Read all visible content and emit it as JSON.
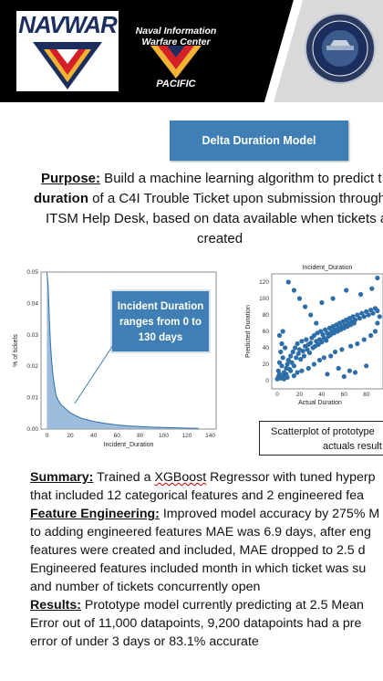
{
  "header": {
    "logo_text": "NAVWAR",
    "org_title": "Naval Information Warfare Center",
    "org_sub": "PACIFIC",
    "colors": {
      "band": "#000000",
      "navy": "#1c2e5e",
      "gold": "#f2b233",
      "red": "#d42127"
    }
  },
  "title_button": "Delta Duration Model",
  "purpose": {
    "label": "Purpose:",
    "line1_rest": " Build a machine learning algorithm to predict t",
    "line2_bold": "duration",
    "line2_rest": " of a C4I Trouble Ticket upon submission through",
    "line3": "ITSM Help Desk, based on data available when tickets a",
    "line4": "created"
  },
  "callout": {
    "text": "Incident Duration ranges from 0 to 130 days"
  },
  "caption": {
    "line1": "Scatterplot of prototype",
    "line2": "actuals result"
  },
  "chart_data": [
    {
      "type": "area",
      "title": "",
      "xlabel": "Incident_Duration",
      "ylabel": "% of tickets",
      "xlim": [
        -5,
        145
      ],
      "ylim": [
        0,
        0.05
      ],
      "x_ticks": [
        0,
        20,
        40,
        60,
        80,
        100,
        120,
        140
      ],
      "y_ticks": [
        "0.00",
        "0.01",
        "0.02",
        "0.03",
        "0.04",
        "0.05"
      ],
      "x": [
        0,
        1,
        2,
        3,
        4,
        5,
        6,
        7,
        8,
        10,
        12,
        15,
        18,
        20,
        25,
        30,
        35,
        40,
        50,
        60,
        70,
        80,
        90,
        100,
        110,
        120,
        130
      ],
      "y": [
        0.05,
        0.046,
        0.036,
        0.028,
        0.022,
        0.018,
        0.015,
        0.0125,
        0.0105,
        0.009,
        0.0078,
        0.0068,
        0.0058,
        0.0052,
        0.0042,
        0.0034,
        0.0029,
        0.0024,
        0.0018,
        0.0013,
        0.001,
        0.0008,
        0.0006,
        0.0005,
        0.0004,
        0.0003,
        0.0002
      ],
      "fill_color": "#7ea6cf",
      "line_color": "#2d6ea8"
    },
    {
      "type": "scatter",
      "title": "Incident_Duration",
      "xlabel": "Actual Duration",
      "ylabel": "Predicted Duration",
      "xlim": [
        -5,
        95
      ],
      "ylim": [
        -10,
        130
      ],
      "x_ticks": [
        0,
        20,
        40,
        60,
        80
      ],
      "y_ticks": [
        0,
        20,
        40,
        60,
        80,
        100,
        120
      ],
      "point_color": "#2d6ea8",
      "points": [
        [
          0,
          2
        ],
        [
          1,
          5
        ],
        [
          2,
          8
        ],
        [
          3,
          3
        ],
        [
          1,
          12
        ],
        [
          4,
          18
        ],
        [
          2,
          22
        ],
        [
          5,
          28
        ],
        [
          3,
          35
        ],
        [
          6,
          10
        ],
        [
          7,
          40
        ],
        [
          4,
          45
        ],
        [
          8,
          15
        ],
        [
          2,
          55
        ],
        [
          5,
          60
        ],
        [
          9,
          20
        ],
        [
          10,
          25
        ],
        [
          11,
          14
        ],
        [
          12,
          30
        ],
        [
          13,
          22
        ],
        [
          14,
          35
        ],
        [
          15,
          18
        ],
        [
          16,
          40
        ],
        [
          17,
          28
        ],
        [
          18,
          45
        ],
        [
          19,
          33
        ],
        [
          20,
          38
        ],
        [
          21,
          26
        ],
        [
          22,
          48
        ],
        [
          23,
          36
        ],
        [
          24,
          30
        ],
        [
          25,
          42
        ],
        [
          26,
          50
        ],
        [
          27,
          38
        ],
        [
          28,
          44
        ],
        [
          29,
          34
        ],
        [
          30,
          46
        ],
        [
          31,
          52
        ],
        [
          32,
          40
        ],
        [
          33,
          55
        ],
        [
          34,
          42
        ],
        [
          35,
          48
        ],
        [
          36,
          58
        ],
        [
          37,
          44
        ],
        [
          38,
          50
        ],
        [
          39,
          60
        ],
        [
          40,
          47
        ],
        [
          41,
          56
        ],
        [
          42,
          52
        ],
        [
          43,
          62
        ],
        [
          44,
          49
        ],
        [
          45,
          58
        ],
        [
          46,
          54
        ],
        [
          47,
          64
        ],
        [
          48,
          56
        ],
        [
          49,
          60
        ],
        [
          50,
          66
        ],
        [
          51,
          58
        ],
        [
          52,
          62
        ],
        [
          53,
          68
        ],
        [
          54,
          60
        ],
        [
          55,
          64
        ],
        [
          56,
          70
        ],
        [
          57,
          62
        ],
        [
          58,
          66
        ],
        [
          59,
          72
        ],
        [
          60,
          64
        ],
        [
          61,
          68
        ],
        [
          62,
          74
        ],
        [
          63,
          66
        ],
        [
          64,
          70
        ],
        [
          65,
          76
        ],
        [
          66,
          68
        ],
        [
          67,
          72
        ],
        [
          68,
          78
        ],
        [
          69,
          70
        ],
        [
          70,
          74
        ],
        [
          72,
          80
        ],
        [
          74,
          76
        ],
        [
          76,
          82
        ],
        [
          78,
          78
        ],
        [
          80,
          84
        ],
        [
          82,
          80
        ],
        [
          84,
          86
        ],
        [
          86,
          82
        ],
        [
          88,
          88
        ],
        [
          90,
          85
        ],
        [
          60,
          5
        ],
        [
          70,
          10
        ],
        [
          65,
          12
        ],
        [
          80,
          18
        ],
        [
          45,
          8
        ],
        [
          55,
          15
        ],
        [
          35,
          70
        ],
        [
          30,
          80
        ],
        [
          25,
          90
        ],
        [
          20,
          100
        ],
        [
          15,
          110
        ],
        [
          10,
          120
        ],
        [
          40,
          95
        ],
        [
          50,
          100
        ],
        [
          62,
          110
        ],
        [
          75,
          105
        ],
        [
          85,
          112
        ],
        [
          90,
          125
        ],
        [
          5,
          5
        ],
        [
          8,
          8
        ],
        [
          12,
          12
        ],
        [
          6,
          2
        ],
        [
          9,
          4
        ],
        [
          15,
          6
        ],
        [
          18,
          10
        ],
        [
          22,
          12
        ],
        [
          28,
          15
        ],
        [
          33,
          20
        ],
        [
          38,
          25
        ],
        [
          42,
          28
        ],
        [
          48,
          30
        ],
        [
          52,
          35
        ],
        [
          58,
          38
        ],
        [
          66,
          42
        ],
        [
          72,
          45
        ],
        [
          78,
          50
        ],
        [
          84,
          55
        ],
        [
          88,
          60
        ],
        [
          90,
          70
        ],
        [
          92,
          78
        ]
      ]
    }
  ],
  "summary": {
    "l1_label": "Summary:",
    "l1_a": " Trained a ",
    "l1_wavy": "XGBoost",
    "l1_b": " Regressor with tuned hyperp",
    "l2": "that included 12 categorical features and 2 engineered fea",
    "l3_label": "Feature Engineering:",
    "l3_rest": " Improved model accuracy by 275% M",
    "l4": "to adding engineered features MAE was 6.9 days, after eng",
    "l5": "features were created and included, MAE dropped to 2.5 d",
    "l6": "Engineered features included month in which ticket was su",
    "l7": "and number of tickets concurrently open",
    "l8_label": "Results:",
    "l8_rest": " Prototype model currently predicting at 2.5 Mean",
    "l9": "Error out of 11,000 datapoints, 9,200 datapoints had a pre",
    "l10": "error of under 3 days or 83.1% accurate"
  }
}
